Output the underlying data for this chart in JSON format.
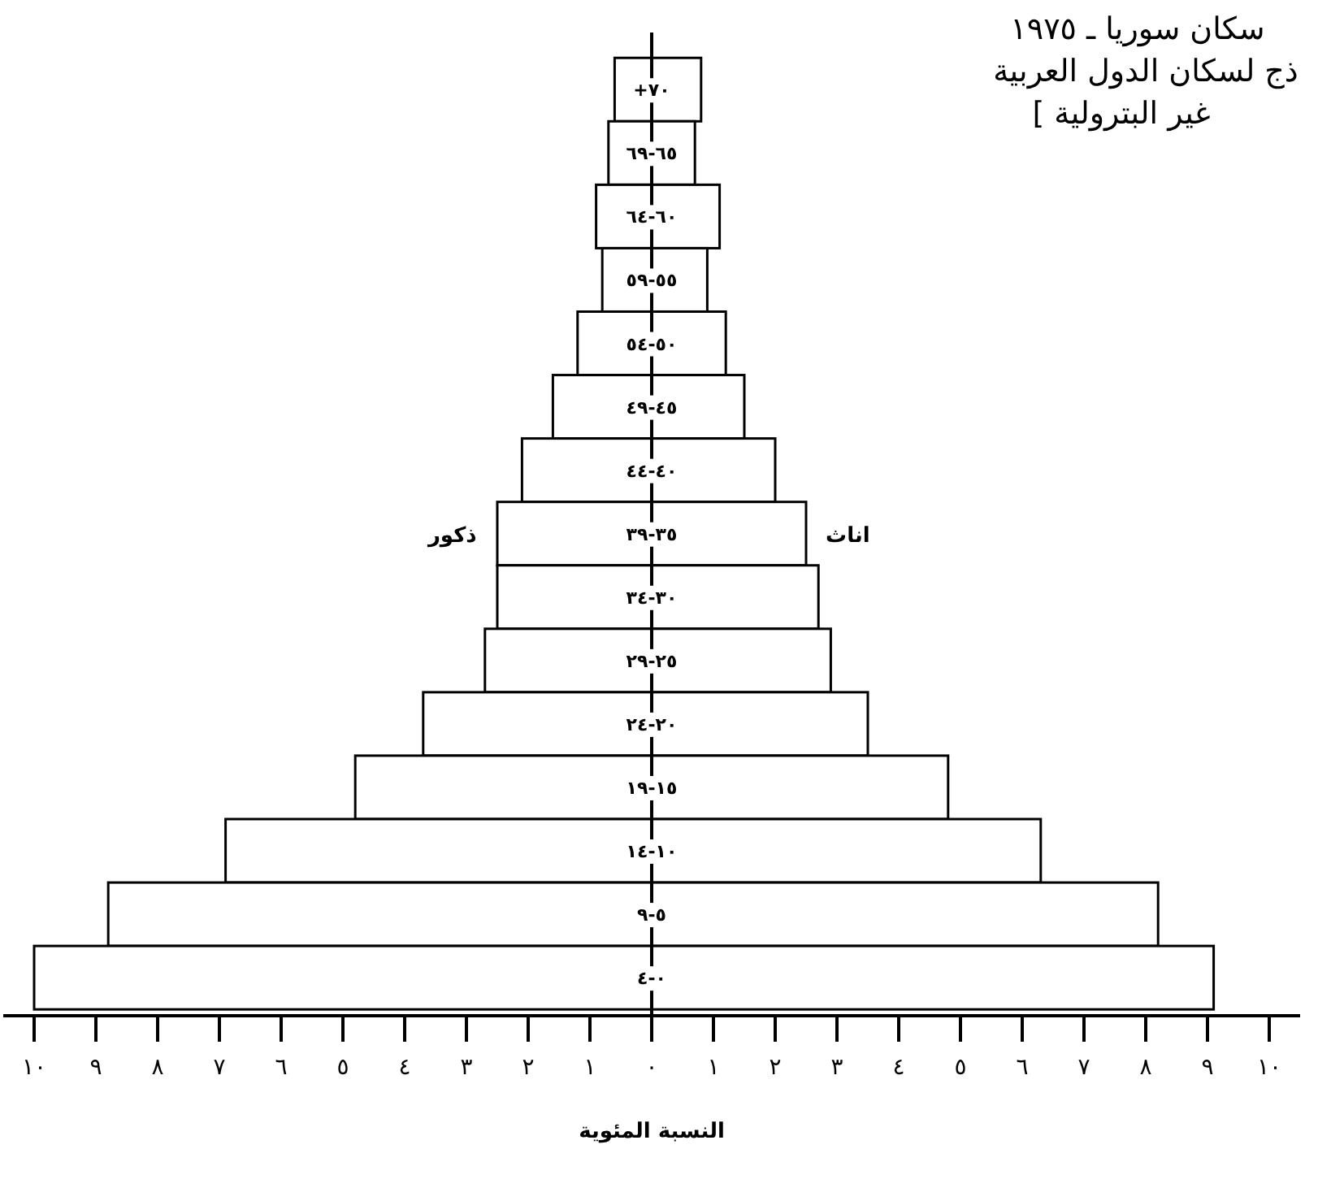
{
  "chart_data": {
    "type": "bar",
    "orientation": "horizontal",
    "stacked": true,
    "title": "سكان سوريا ـ ١٩٧٥",
    "subtitle": "ذج لسكان الدول العربية",
    "annotations": [
      "غير البترولية ]"
    ],
    "xlabel": "النسبة المئوية",
    "categories": [
      "٧٠+",
      "٦٥-٦٩",
      "٦٠-٦٤",
      "٥٥-٥٩",
      "٥٠-٥٤",
      "٤٥-٤٩",
      "٤٠-٤٤",
      "٣٥-٣٩",
      "٣٠-٣٤",
      "٢٥-٢٩",
      "٢٠-٢٤",
      "١٥-١٩",
      "١٠-١٤",
      "٥-٩",
      "٠-٤"
    ],
    "series": [
      {
        "name": "ذكور",
        "color": "#ffffff",
        "values": [
          -0.6,
          -0.7,
          -0.9,
          -0.8,
          -1.2,
          -1.6,
          -2.1,
          -2.5,
          -2.5,
          -2.7,
          -3.7,
          -4.8,
          -6.9,
          -8.8,
          -10.0
        ]
      },
      {
        "name": "اناث",
        "color": "#ffffff",
        "values": [
          0.8,
          0.7,
          1.1,
          0.9,
          1.2,
          1.5,
          2.0,
          2.5,
          2.7,
          2.9,
          3.5,
          4.8,
          6.3,
          8.2,
          9.1
        ]
      }
    ],
    "xlim": [
      -10.5,
      10.5
    ],
    "xticks": [
      {
        "value": -10,
        "label": "١٠"
      },
      {
        "value": -9,
        "label": "٩"
      },
      {
        "value": -8,
        "label": "٨"
      },
      {
        "value": -7,
        "label": "٧"
      },
      {
        "value": -6,
        "label": "٦"
      },
      {
        "value": -5,
        "label": "٥"
      },
      {
        "value": -4,
        "label": "٤"
      },
      {
        "value": -3,
        "label": "٣"
      },
      {
        "value": -2,
        "label": "٢"
      },
      {
        "value": -1,
        "label": "١"
      },
      {
        "value": 0,
        "label": "٠"
      },
      {
        "value": 1,
        "label": "١"
      },
      {
        "value": 2,
        "label": "٢"
      },
      {
        "value": 3,
        "label": "٣"
      },
      {
        "value": 4,
        "label": "٤"
      },
      {
        "value": 5,
        "label": "٥"
      },
      {
        "value": 6,
        "label": "٦"
      },
      {
        "value": 7,
        "label": "٧"
      },
      {
        "value": 8,
        "label": "٨"
      },
      {
        "value": 9,
        "label": "٩"
      },
      {
        "value": 10,
        "label": "١٠"
      }
    ]
  }
}
